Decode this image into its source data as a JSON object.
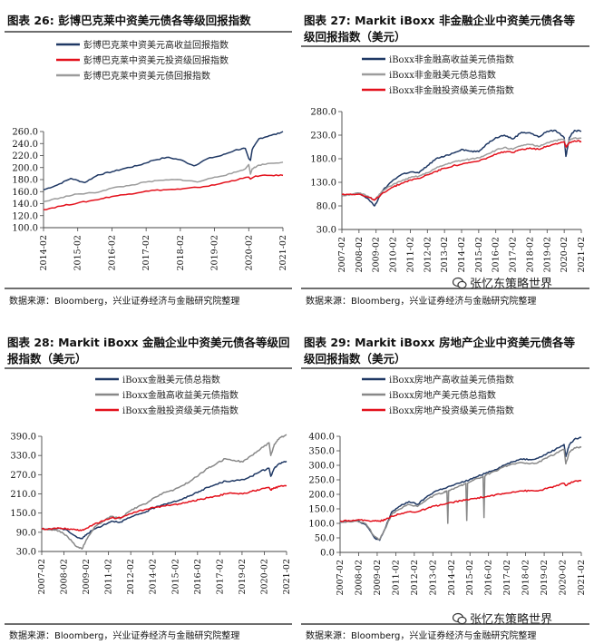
{
  "source_note": "数据来源：Bloomberg，兴业证券经济与金融研究院整理",
  "watermark": "张忆东策略世界",
  "colors": {
    "navy": "#1f3864",
    "red": "#e3101b",
    "gray": "#9c9c9c"
  },
  "chart_data": [
    {
      "type": "line",
      "title": "图表 26:  彭博巴克莱中资美元债各等级回报指数",
      "xlabel": "",
      "ylabel": "",
      "ylim": [
        100,
        260
      ],
      "yticks": [
        "260.0",
        "240.0",
        "220.0",
        "200.0",
        "180.0",
        "160.0",
        "140.0",
        "120.0",
        "100.0"
      ],
      "xticks": [
        "2014-02",
        "2015-02",
        "2016-02",
        "2017-02",
        "2018-02",
        "2019-02",
        "2020-02",
        "2021-02"
      ],
      "legend": "top-left",
      "series": [
        {
          "name": "彭博巴克莱中资美元高收益回报指数",
          "color": "#1f3864",
          "x": [
            0,
            0.4,
            0.8,
            1.2,
            1.6,
            2.0,
            2.4,
            2.8,
            3.2,
            3.6,
            4.0,
            4.4,
            4.8,
            5.2,
            5.6,
            5.9,
            6.0,
            6.05,
            6.1,
            6.3,
            6.6,
            6.9,
            7.0
          ],
          "values": [
            163,
            171,
            182,
            175,
            188,
            193,
            199,
            204,
            212,
            217,
            213,
            203,
            215,
            220,
            229,
            232,
            215,
            212,
            230,
            248,
            253,
            257,
            260
          ]
        },
        {
          "name": "彭博巴克莱中资美元投资级回报指数",
          "color": "#e3101b",
          "x": [
            0,
            0.5,
            1.0,
            1.5,
            2.0,
            2.5,
            3.0,
            3.5,
            4.0,
            4.5,
            5.0,
            5.5,
            6.0,
            6.05,
            6.2,
            6.6,
            7.0
          ],
          "values": [
            130,
            136,
            141,
            146,
            152,
            156,
            161,
            163,
            164,
            167,
            171,
            178,
            184,
            181,
            186,
            187,
            187
          ]
        },
        {
          "name": "彭博巴克莱中资美元债回报指数",
          "color": "#9c9c9c",
          "x": [
            0,
            0.5,
            1.0,
            1.5,
            2.0,
            2.5,
            3.0,
            3.5,
            4.0,
            4.5,
            5.0,
            5.5,
            5.9,
            6.0,
            6.05,
            6.1,
            6.3,
            6.6,
            7.0
          ],
          "values": [
            143,
            150,
            156,
            158,
            166,
            170,
            176,
            179,
            180,
            176,
            184,
            190,
            198,
            205,
            189,
            198,
            204,
            207,
            209
          ]
        }
      ]
    },
    {
      "type": "line",
      "title": "图表 27:  Markit iBoxx 非金融企业中资美元债各等级回报指数（美元）",
      "xlabel": "",
      "ylabel": "",
      "ylim": [
        30,
        280
      ],
      "yticks": [
        "280.0",
        "230.0",
        "180.0",
        "130.0",
        "80.0",
        "30.0"
      ],
      "xticks": [
        "2007-02",
        "2008-02",
        "2009-02",
        "2010-02",
        "2011-02",
        "2012-02",
        "2013-02",
        "2014-02",
        "2015-02",
        "2016-02",
        "2017-02",
        "2018-02",
        "2019-02",
        "2020-02",
        "2021-02"
      ],
      "legend": "top-left",
      "series": [
        {
          "name": "iBoxx非金融高收益美元债指数",
          "color": "#1f3864",
          "x": [
            0,
            0.5,
            1.0,
            1.5,
            1.9,
            2.1,
            2.4,
            3.0,
            3.5,
            4.0,
            4.5,
            5.0,
            5.5,
            6.0,
            6.5,
            7.0,
            7.5,
            8.0,
            8.5,
            9.0,
            9.5,
            10.0,
            10.5,
            11.0,
            11.5,
            12.0,
            12.5,
            13.0,
            13.1,
            13.3,
            13.6,
            14.0
          ],
          "values": [
            101,
            104,
            107,
            96,
            80,
            92,
            113,
            135,
            147,
            152,
            150,
            165,
            180,
            185,
            192,
            200,
            196,
            195,
            212,
            225,
            230,
            222,
            236,
            235,
            226,
            238,
            240,
            225,
            185,
            225,
            240,
            238
          ]
        },
        {
          "name": "iBoxx非金融美元债总指数",
          "color": "#9c9c9c",
          "x": [
            0,
            0.5,
            1.0,
            1.5,
            1.9,
            2.1,
            2.4,
            3.0,
            3.5,
            4.0,
            4.5,
            5.0,
            5.5,
            6.0,
            6.5,
            7.0,
            7.5,
            8.0,
            8.5,
            9.0,
            9.5,
            10.0,
            10.5,
            11.0,
            11.5,
            12.0,
            12.5,
            13.0,
            13.1,
            13.3,
            13.6,
            14.0
          ],
          "values": [
            102,
            104,
            107,
            101,
            93,
            100,
            112,
            126,
            133,
            140,
            143,
            150,
            160,
            167,
            173,
            176,
            179,
            182,
            190,
            198,
            204,
            200,
            208,
            210,
            206,
            214,
            219,
            221,
            203,
            219,
            224,
            223
          ]
        },
        {
          "name": "iBoxx非金融投资级美元债指数",
          "color": "#e3101b",
          "x": [
            0,
            0.5,
            1.0,
            1.5,
            1.9,
            2.1,
            2.4,
            3.0,
            3.5,
            4.0,
            4.5,
            5.0,
            5.5,
            6.0,
            6.5,
            7.0,
            7.5,
            8.0,
            8.5,
            9.0,
            9.5,
            10.0,
            10.5,
            11.0,
            11.5,
            12.0,
            12.5,
            13.0,
            13.1,
            13.3,
            13.6,
            14.0
          ],
          "values": [
            104,
            105,
            105,
            99,
            92,
            98,
            108,
            120,
            128,
            135,
            138,
            146,
            153,
            160,
            165,
            168,
            172,
            175,
            182,
            189,
            195,
            193,
            200,
            203,
            200,
            207,
            212,
            216,
            205,
            214,
            218,
            217
          ]
        }
      ]
    },
    {
      "type": "line",
      "title": "图表 28:  Markit iBoxx 金融企业中资美元债各等级回报指数（美元）",
      "xlabel": "",
      "ylabel": "",
      "ylim": [
        30,
        390
      ],
      "yticks": [
        "390.0",
        "330.0",
        "270.0",
        "210.0",
        "150.0",
        "90.0",
        "30.0"
      ],
      "xticks": [
        "2007-02",
        "2008-02",
        "2009-02",
        "2011-02",
        "2012-02",
        "2014-02",
        "2015-02",
        "2016-02",
        "2017-02",
        "2019-02",
        "2020-02",
        "2021-02"
      ],
      "legend": "top-center",
      "series": [
        {
          "name": "iBoxx金融美元债总指数",
          "color": "#1f3864",
          "x": [
            0,
            0.5,
            1.0,
            1.5,
            2.0,
            2.3,
            2.6,
            3.0,
            3.5,
            4.0,
            4.5,
            5.0,
            5.5,
            6.0,
            6.5,
            7.0,
            7.5,
            8.0,
            8.5,
            9.0,
            9.5,
            10.0,
            10.5,
            11.0,
            11.5,
            12.0,
            12.5,
            13.0,
            13.1,
            13.3,
            13.6,
            14.0
          ],
          "values": [
            100,
            100,
            103,
            95,
            75,
            70,
            85,
            100,
            112,
            125,
            122,
            135,
            145,
            155,
            168,
            178,
            185,
            192,
            205,
            218,
            230,
            240,
            250,
            250,
            255,
            265,
            280,
            290,
            265,
            290,
            305,
            312
          ]
        },
        {
          "name": "iBoxx金融高收益美元债指数",
          "color": "#888888",
          "x": [
            0,
            0.5,
            1.0,
            1.5,
            2.0,
            2.3,
            2.6,
            3.0,
            3.5,
            4.0,
            4.5,
            5.0,
            5.5,
            6.0,
            6.5,
            7.0,
            7.5,
            8.0,
            8.5,
            9.0,
            9.5,
            10.0,
            10.5,
            11.0,
            11.5,
            12.0,
            12.5,
            13.0,
            13.1,
            13.3,
            13.6,
            14.0
          ],
          "values": [
            100,
            98,
            95,
            75,
            45,
            38,
            70,
            105,
            125,
            140,
            132,
            155,
            170,
            180,
            200,
            215,
            220,
            235,
            250,
            270,
            290,
            305,
            320,
            315,
            310,
            330,
            350,
            370,
            330,
            365,
            385,
            395
          ]
        },
        {
          "name": "iBoxx金融投资级美元债指数",
          "color": "#e3101b",
          "x": [
            0,
            0.5,
            1.0,
            1.5,
            2.0,
            2.3,
            2.6,
            3.0,
            3.5,
            4.0,
            4.5,
            5.0,
            5.5,
            6.0,
            6.5,
            7.0,
            7.5,
            8.0,
            8.5,
            9.0,
            9.5,
            10.0,
            10.5,
            11.0,
            11.5,
            12.0,
            12.5,
            13.0,
            13.1,
            13.3,
            13.6,
            14.0
          ],
          "values": [
            100,
            101,
            103,
            101,
            97,
            97,
            103,
            115,
            125,
            135,
            135,
            147,
            155,
            162,
            168,
            172,
            176,
            180,
            186,
            192,
            198,
            203,
            210,
            212,
            210,
            218,
            224,
            230,
            222,
            228,
            233,
            235
          ]
        }
      ]
    },
    {
      "type": "line",
      "title": "图表 29:  Markit iBoxx 房地产企业中资美元债各等级回报指数（美元）",
      "xlabel": "",
      "ylabel": "",
      "ylim": [
        0,
        400
      ],
      "yticks": [
        "400.0",
        "350.0",
        "300.0",
        "250.0",
        "200.0",
        "150.0",
        "100.0",
        "50.0",
        "0.0"
      ],
      "xticks": [
        "2007-02",
        "2008-02",
        "2009-02",
        "2011-02",
        "2012-02",
        "2013-02",
        "2014-02",
        "2015-02",
        "2016-02",
        "2017-02",
        "2018-02",
        "2019-02",
        "2020-02",
        "2021-02"
      ],
      "legend": "top-center",
      "series": [
        {
          "name": "iBoxx房地产高收益美元债指数",
          "color": "#1f3864",
          "x": [
            0,
            0.5,
            1.0,
            1.5,
            2.0,
            2.3,
            2.6,
            3.0,
            3.5,
            4.0,
            4.5,
            5.0,
            5.5,
            6.0,
            6.5,
            7.0,
            7.5,
            8.0,
            8.5,
            9.0,
            9.5,
            10.0,
            10.5,
            11.0,
            11.5,
            12.0,
            12.5,
            13.0,
            13.1,
            13.3,
            13.6,
            14.0
          ],
          "values": [
            105,
            108,
            110,
            95,
            50,
            42,
            80,
            140,
            160,
            175,
            165,
            190,
            210,
            220,
            230,
            240,
            250,
            262,
            275,
            285,
            300,
            312,
            322,
            320,
            325,
            340,
            355,
            372,
            330,
            370,
            390,
            395
          ]
        },
        {
          "name": "iBoxx房地产美元债总指数",
          "color": "#888888",
          "x": [
            0,
            0.5,
            1.0,
            1.5,
            2.0,
            2.3,
            2.6,
            3.0,
            3.5,
            4.0,
            4.5,
            5.0,
            5.5,
            6.0,
            6.2,
            6.25,
            6.3,
            6.5,
            7.0,
            7.3,
            7.35,
            7.4,
            7.5,
            8.0,
            8.3,
            8.35,
            8.4,
            8.5,
            9.0,
            9.5,
            10.0,
            10.5,
            11.0,
            11.5,
            12.0,
            12.5,
            13.0,
            13.1,
            13.3,
            13.6,
            14.0
          ],
          "values": [
            105,
            106,
            108,
            98,
            55,
            45,
            80,
            132,
            150,
            165,
            158,
            180,
            198,
            205,
            212,
            100,
            212,
            218,
            230,
            238,
            110,
            238,
            242,
            255,
            262,
            120,
            262,
            268,
            280,
            295,
            305,
            310,
            305,
            310,
            325,
            340,
            355,
            305,
            345,
            360,
            362
          ]
        },
        {
          "name": "iBoxx房地产投资级美元债指数",
          "color": "#e3101b",
          "x": [
            0,
            0.5,
            1.0,
            1.5,
            2.0,
            2.3,
            2.6,
            3.0,
            3.5,
            4.0,
            4.5,
            5.0,
            5.5,
            6.0,
            6.5,
            7.0,
            7.5,
            8.0,
            8.5,
            9.0,
            9.5,
            10.0,
            10.5,
            11.0,
            11.5,
            12.0,
            12.5,
            13.0,
            13.1,
            13.3,
            13.6,
            14.0
          ],
          "values": [
            108,
            110,
            112,
            110,
            108,
            108,
            112,
            125,
            132,
            140,
            140,
            150,
            160,
            165,
            172,
            178,
            182,
            188,
            192,
            198,
            202,
            208,
            212,
            212,
            212,
            220,
            228,
            238,
            230,
            238,
            245,
            248
          ]
        }
      ]
    }
  ]
}
